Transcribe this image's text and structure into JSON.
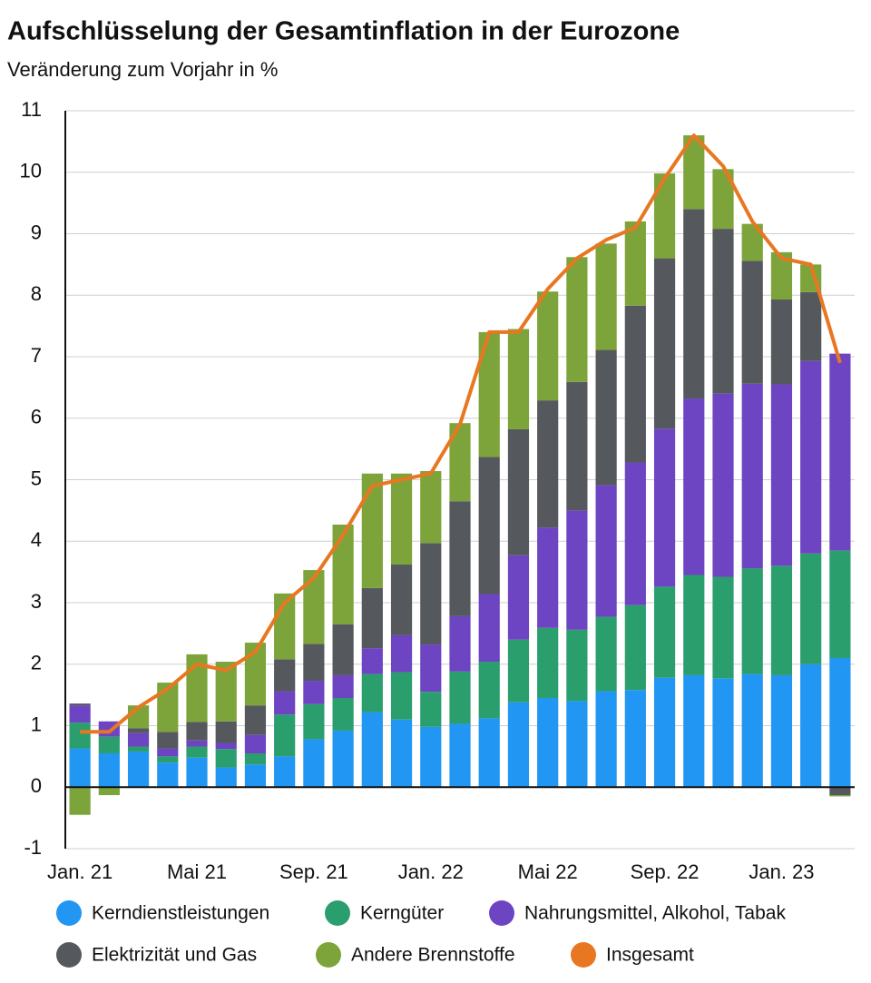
{
  "chart_data": {
    "type": "bar",
    "stacked": true,
    "title": "Aufschlüsselung der Gesamtinflation in der Eurozone",
    "subtitle": "Veränderung zum Vorjahr in %",
    "categories": [
      "Jan. 21",
      null,
      null,
      null,
      "Mai 21",
      null,
      null,
      null,
      "Sep. 21",
      null,
      null,
      null,
      "Jan. 22",
      null,
      null,
      null,
      "Mai 22",
      null,
      null,
      null,
      "Sep. 22",
      null,
      null,
      null,
      "Jan. 23",
      null,
      null
    ],
    "series": [
      {
        "name": "Kerndienstleistungen",
        "color": "#2196f3",
        "values": [
          0.63,
          0.55,
          0.58,
          0.4,
          0.48,
          0.32,
          0.37,
          0.5,
          0.78,
          0.92,
          1.22,
          1.1,
          0.98,
          1.03,
          1.12,
          1.38,
          1.45,
          1.4,
          1.56,
          1.58,
          1.78,
          1.82,
          1.77,
          1.84,
          1.82,
          2.0,
          2.1
        ]
      },
      {
        "name": "Kerngüter",
        "color": "#2b9e6e",
        "values": [
          0.42,
          0.27,
          0.08,
          0.1,
          0.18,
          0.3,
          0.18,
          0.68,
          0.57,
          0.53,
          0.62,
          0.77,
          0.57,
          0.85,
          0.92,
          1.02,
          1.14,
          1.16,
          1.21,
          1.38,
          1.48,
          1.63,
          1.65,
          1.72,
          1.78,
          1.8,
          1.75
        ]
      },
      {
        "name": "Nahrungsmittel, Alkohol, Tabak",
        "color": "#6d44c2",
        "values": [
          0.28,
          0.25,
          0.22,
          0.13,
          0.1,
          0.1,
          0.3,
          0.38,
          0.38,
          0.37,
          0.42,
          0.6,
          0.77,
          0.9,
          1.1,
          1.37,
          1.63,
          1.94,
          2.14,
          2.32,
          2.57,
          2.87,
          2.98,
          3.0,
          2.95,
          3.13,
          3.2
        ]
      },
      {
        "name": "Elektrizität und Gas",
        "color": "#55595d",
        "values": [
          0.03,
          0.0,
          0.08,
          0.27,
          0.3,
          0.35,
          0.48,
          0.52,
          0.6,
          0.83,
          0.98,
          1.15,
          1.65,
          1.87,
          2.23,
          2.05,
          2.07,
          2.09,
          2.2,
          2.55,
          2.77,
          3.08,
          2.68,
          2.0,
          1.38,
          1.12,
          -0.13
        ]
      },
      {
        "name": "Andere Brennstoffe",
        "color": "#7da43a",
        "values": [
          -0.45,
          -0.13,
          0.37,
          0.8,
          1.1,
          0.97,
          1.02,
          1.07,
          1.2,
          1.62,
          1.86,
          1.48,
          1.17,
          1.27,
          2.03,
          1.63,
          1.77,
          2.03,
          1.73,
          1.37,
          1.38,
          1.2,
          0.97,
          0.6,
          0.77,
          0.45,
          -0.02
        ]
      },
      {
        "name": "Insgesamt",
        "color": "#e87722",
        "type": "line",
        "values": [
          0.9,
          0.9,
          1.3,
          1.6,
          2.0,
          1.9,
          2.2,
          3.0,
          3.4,
          4.1,
          4.9,
          5.0,
          5.1,
          5.9,
          7.4,
          7.4,
          8.1,
          8.6,
          8.9,
          9.1,
          9.9,
          10.6,
          10.1,
          9.2,
          8.6,
          8.5,
          6.9
        ]
      }
    ],
    "ylim": [
      -1,
      11
    ],
    "yticks": [
      -1,
      0,
      1,
      2,
      3,
      4,
      5,
      6,
      7,
      8,
      9,
      10,
      11
    ],
    "grid": true
  }
}
